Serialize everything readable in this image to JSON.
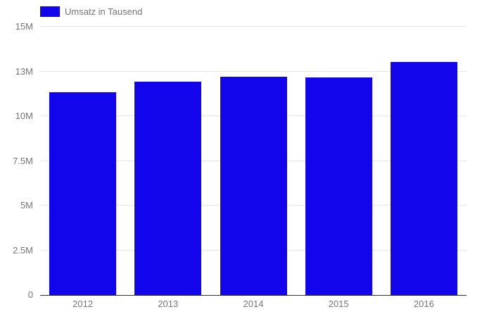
{
  "chart_data": {
    "type": "bar",
    "title": "",
    "legend_label": "Umsatz in Tausend",
    "legend_position": "top-left",
    "categories": [
      "2012",
      "2013",
      "2014",
      "2015",
      "2016"
    ],
    "series": [
      {
        "name": "Umsatz in Tausend",
        "values": [
          11350000,
          11930000,
          12190000,
          12150000,
          13040000
        ]
      }
    ],
    "xlabel": "",
    "ylabel": "",
    "ylim": [
      0,
      15000000
    ],
    "yticks": [
      {
        "value": 0,
        "label": "0"
      },
      {
        "value": 2500000,
        "label": "2.5M"
      },
      {
        "value": 5000000,
        "label": "5M"
      },
      {
        "value": 7500000,
        "label": "7.5M"
      },
      {
        "value": 10000000,
        "label": "10M"
      },
      {
        "value": 12500000,
        "label": "13M"
      },
      {
        "value": 15000000,
        "label": "15M"
      }
    ],
    "grid": true,
    "bar_color": "#1205ec",
    "gridline_color": "#e6e6e6",
    "baseline_color": "#333333",
    "axis_text_color": "#757575",
    "background_color": "#ffffff"
  }
}
